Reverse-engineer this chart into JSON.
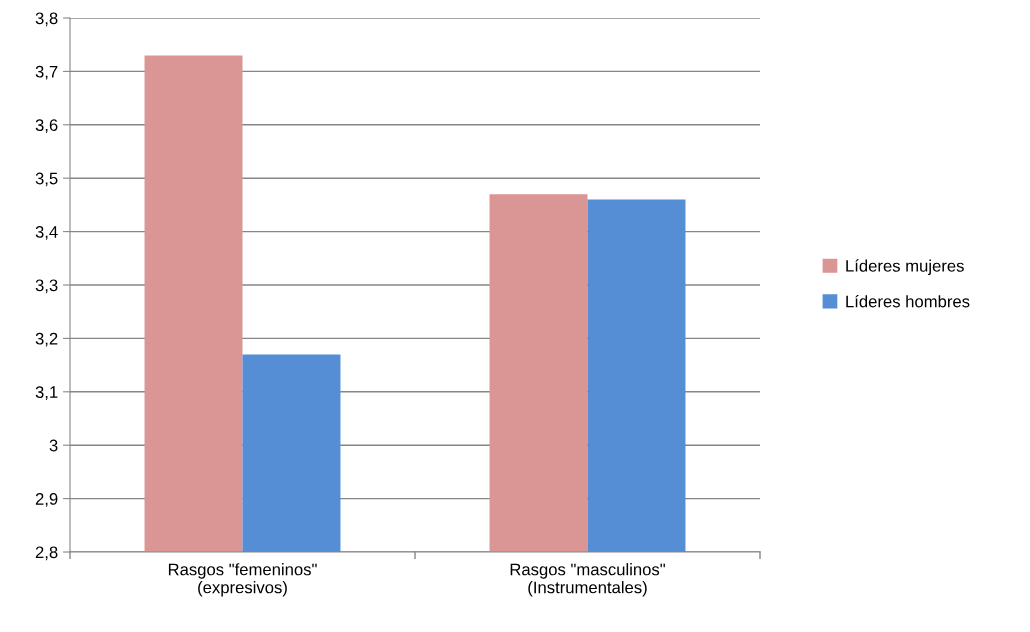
{
  "chart_data": {
    "type": "bar",
    "categories": [
      "Rasgos \"femeninos\"\n(expresivos)",
      "Rasgos \"masculinos\"\n(Instrumentales)"
    ],
    "series": [
      {
        "name": "Líderes mujeres",
        "color": "#d99694",
        "values": [
          3.73,
          3.47
        ]
      },
      {
        "name": "Líderes hombres",
        "color": "#558ed5",
        "values": [
          3.17,
          3.46
        ]
      }
    ],
    "ylim": [
      2.8,
      3.8
    ],
    "yticks": [
      {
        "value": 2.8,
        "label": "2,8"
      },
      {
        "value": 2.9,
        "label": "2,9"
      },
      {
        "value": 3,
        "label": "3"
      },
      {
        "value": 3.1,
        "label": "3,1"
      },
      {
        "value": 3.2,
        "label": "3,2"
      },
      {
        "value": 3.3,
        "label": "3,3"
      },
      {
        "value": 3.4,
        "label": "3,4"
      },
      {
        "value": 3.5,
        "label": "3,5"
      },
      {
        "value": 3.6,
        "label": "3,6"
      },
      {
        "value": 3.7,
        "label": "3,7"
      },
      {
        "value": 3.8,
        "label": "3,8"
      }
    ],
    "grid": "y",
    "legend": "right"
  }
}
